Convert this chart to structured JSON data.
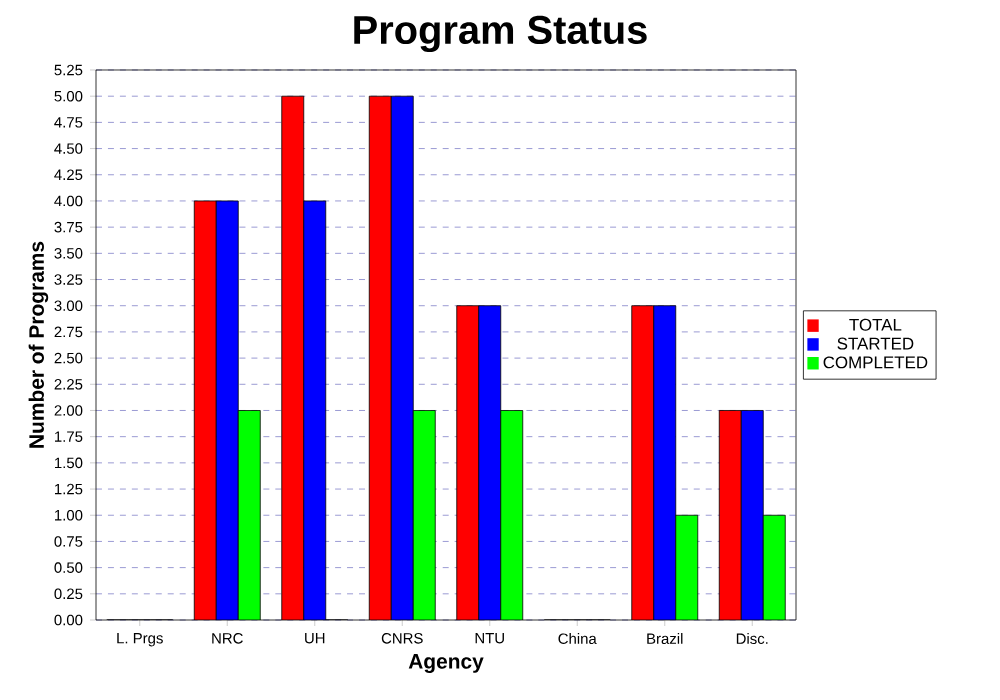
{
  "chart_data": {
    "type": "bar",
    "title": "Program Status",
    "xlabel": "Agency",
    "ylabel": "Number of Programs",
    "categories": [
      "L. Prgs",
      "NRC",
      "UH",
      "CNRS",
      "NTU",
      "China",
      "Brazil",
      "Disc."
    ],
    "series": [
      {
        "name": "TOTAL",
        "color": "#ff0000",
        "values": [
          0,
          4,
          5,
          5,
          3,
          0,
          3,
          2
        ]
      },
      {
        "name": "STARTED",
        "color": "#0000ff",
        "values": [
          0,
          4,
          4,
          5,
          3,
          0,
          3,
          2
        ]
      },
      {
        "name": "COMPLETED",
        "color": "#00ff00",
        "values": [
          0,
          2,
          0,
          2,
          2,
          0,
          1,
          1
        ]
      }
    ],
    "ylim": [
      0,
      5.25
    ],
    "yticks": [
      {
        "value": 0,
        "label": "0.00"
      },
      {
        "value": 0.25,
        "label": "0.25"
      },
      {
        "value": 0.5,
        "label": "0.50"
      },
      {
        "value": 0.75,
        "label": "0.75"
      },
      {
        "value": 1,
        "label": "1.00"
      },
      {
        "value": 1.25,
        "label": "1.25"
      },
      {
        "value": 1.5,
        "label": "1.50"
      },
      {
        "value": 1.75,
        "label": "1.75"
      },
      {
        "value": 2,
        "label": "2.00"
      },
      {
        "value": 2.25,
        "label": "2.25"
      },
      {
        "value": 2.5,
        "label": "2.50"
      },
      {
        "value": 2.75,
        "label": "2.75"
      },
      {
        "value": 3,
        "label": "3.00"
      },
      {
        "value": 3.25,
        "label": "3.25"
      },
      {
        "value": 3.5,
        "label": "3.50"
      },
      {
        "value": 3.75,
        "label": "3.75"
      },
      {
        "value": 4,
        "label": "4.00"
      },
      {
        "value": 4.25,
        "label": "4.25"
      },
      {
        "value": 4.5,
        "label": "4.50"
      },
      {
        "value": 4.75,
        "label": "4.75"
      },
      {
        "value": 5,
        "label": "5.00"
      },
      {
        "value": 5.25,
        "label": "5.25"
      }
    ],
    "grid": "y",
    "legend": "right"
  }
}
